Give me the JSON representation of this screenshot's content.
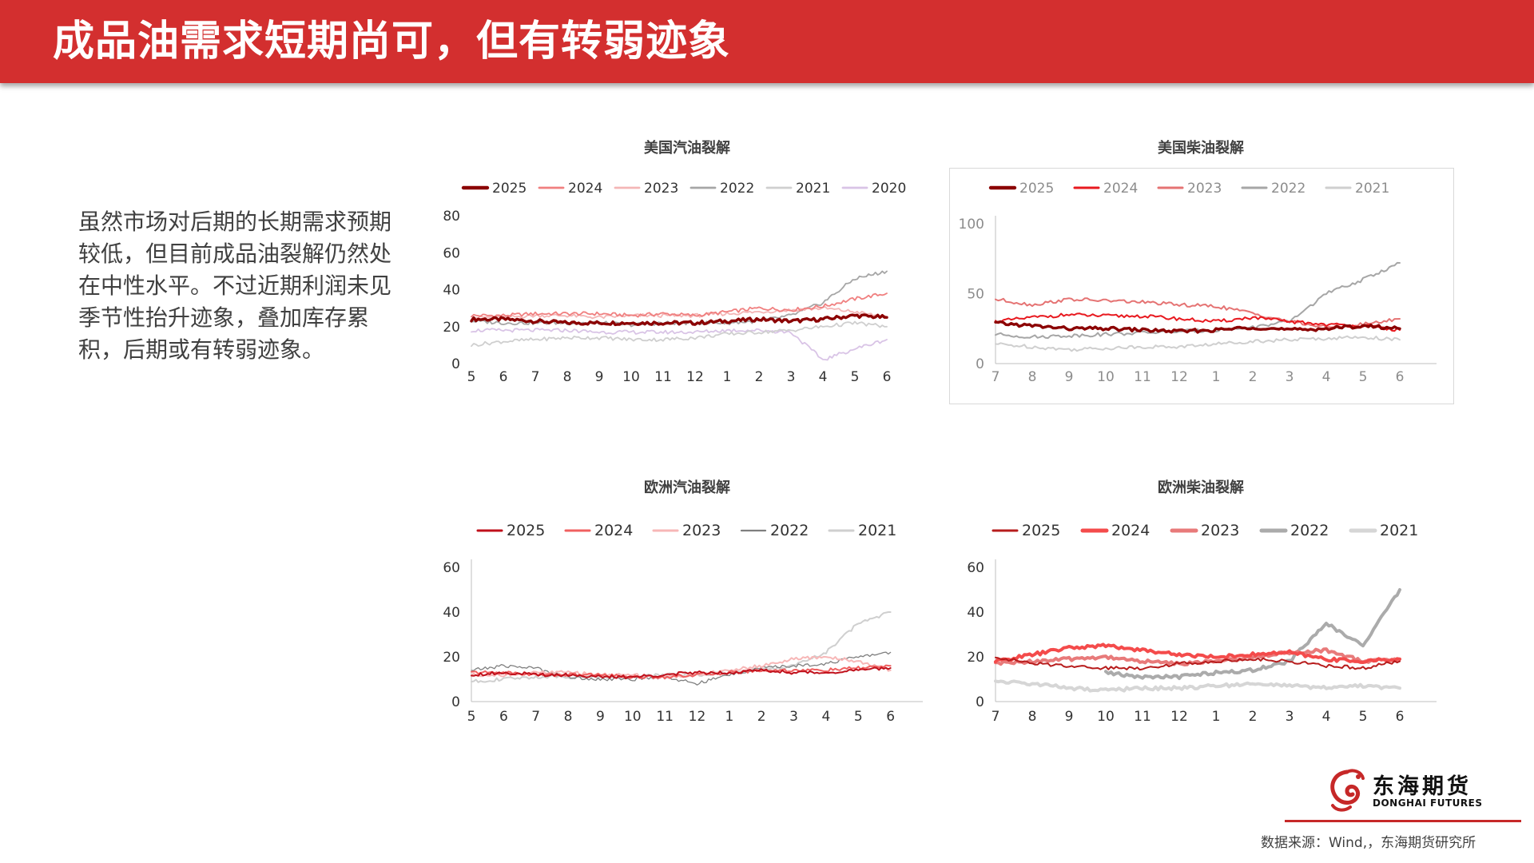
{
  "header": {
    "title": "成品油需求短期尚可，但有转弱迹象"
  },
  "body_text": "虽然市场对后期的长期需求预期较低，但目前成品油裂解仍然处在中性水平。不过近期利润未见季节性抬升迹象，叠加库存累积，后期或有转弱迹象。",
  "brand": {
    "name_cn": "东海期货",
    "name_en": "DONGHAI FUTURES",
    "logo_icon": "dragon-logo-icon",
    "accent": "#c62828"
  },
  "source_note": "数据来源：Wind,，东海期货研究所",
  "colors": {
    "header_bg": "#d32f2f"
  },
  "chart_data": [
    {
      "id": "us-gasoline",
      "type": "line",
      "title": "美国汽油裂解",
      "categories": [
        "5",
        "6",
        "7",
        "8",
        "9",
        "10",
        "11",
        "12",
        "1",
        "2",
        "3",
        "4",
        "5",
        "6"
      ],
      "ylim": [
        0,
        80
      ],
      "yticks": [
        "0",
        "20",
        "40",
        "60",
        "80"
      ],
      "legend_position": "top",
      "series": [
        {
          "name": "2025",
          "color": "#8b0000",
          "width": 3.4,
          "values": [
            24,
            24,
            23,
            22,
            22,
            22,
            22,
            22,
            23,
            24,
            23,
            24,
            26,
            25
          ]
        },
        {
          "name": "2024",
          "color": "#f08080",
          "width": 1.8,
          "values": [
            26,
            26,
            27,
            27,
            27,
            26,
            27,
            26,
            28,
            30,
            29,
            31,
            35,
            38
          ]
        },
        {
          "name": "2023",
          "color": "#f4b6b6",
          "width": 1.8,
          "values": [
            25,
            25,
            26,
            26,
            25,
            26,
            26,
            26,
            27,
            28,
            29,
            30,
            28,
            25
          ]
        },
        {
          "name": "2022",
          "color": "#a6a6a6",
          "width": 1.8,
          "values": [
            23,
            22,
            22,
            22,
            22,
            21,
            22,
            22,
            22,
            23,
            26,
            33,
            46,
            50
          ]
        },
        {
          "name": "2021",
          "color": "#cfcfcf",
          "width": 1.8,
          "values": [
            10,
            12,
            13,
            14,
            14,
            13,
            13,
            14,
            16,
            17,
            18,
            20,
            22,
            20
          ]
        },
        {
          "name": "2020",
          "color": "#d9c4e6",
          "width": 1.8,
          "values": [
            18,
            18,
            18,
            18,
            17,
            17,
            17,
            17,
            18,
            18,
            17,
            2,
            8,
            13
          ]
        }
      ]
    },
    {
      "id": "us-diesel",
      "type": "line",
      "title": "美国柴油裂解",
      "categories": [
        "7",
        "8",
        "9",
        "10",
        "11",
        "12",
        "1",
        "2",
        "3",
        "4",
        "5",
        "6"
      ],
      "ylim": [
        0,
        100
      ],
      "yticks": [
        "0",
        "50",
        "100"
      ],
      "legend_position": "top",
      "series": [
        {
          "name": "2025",
          "color": "#8b0000",
          "width": 3.4,
          "values": [
            29,
            27,
            25,
            25,
            24,
            23,
            24,
            26,
            24,
            25,
            27,
            25
          ]
        },
        {
          "name": "2024",
          "color": "#e8191f",
          "width": 2.0,
          "values": [
            30,
            33,
            35,
            34,
            34,
            32,
            30,
            33,
            30,
            28,
            27,
            24
          ]
        },
        {
          "name": "2023",
          "color": "#e57373",
          "width": 2.0,
          "values": [
            46,
            42,
            46,
            45,
            44,
            42,
            41,
            36,
            30,
            26,
            28,
            32
          ]
        },
        {
          "name": "2022",
          "color": "#a6a6a6",
          "width": 2.0,
          "values": [
            21,
            19,
            20,
            21,
            22,
            23,
            24,
            26,
            30,
            50,
            60,
            72
          ]
        },
        {
          "name": "2021",
          "color": "#cfcfcf",
          "width": 2.0,
          "values": [
            14,
            12,
            10,
            11,
            12,
            12,
            14,
            16,
            17,
            18,
            19,
            17
          ]
        }
      ]
    },
    {
      "id": "eu-gasoline",
      "type": "line",
      "title": "欧洲汽油裂解",
      "categories": [
        "5",
        "6",
        "7",
        "8",
        "9",
        "10",
        "11",
        "12",
        "1",
        "2",
        "3",
        "4",
        "5",
        "6"
      ],
      "ylim": [
        0,
        60
      ],
      "yticks": [
        "0",
        "20",
        "40",
        "60"
      ],
      "legend_position": "top",
      "series": [
        {
          "name": "2025",
          "color": "#c0101b",
          "width": 2.0,
          "values": [
            12,
            13,
            12,
            12,
            11,
            11,
            12,
            13,
            13,
            14,
            13,
            13,
            14,
            15
          ]
        },
        {
          "name": "2024",
          "color": "#f06060",
          "width": 2.0,
          "values": [
            13,
            13,
            12,
            12,
            12,
            11,
            11,
            12,
            13,
            14,
            14,
            14,
            15,
            16
          ]
        },
        {
          "name": "2023",
          "color": "#f7b7b7",
          "width": 2.0,
          "values": [
            12,
            12,
            13,
            13,
            12,
            12,
            11,
            12,
            14,
            16,
            19,
            20,
            18,
            14
          ]
        },
        {
          "name": "2022",
          "color": "#7f7f7f",
          "width": 1.3,
          "values": [
            14,
            16,
            15,
            11,
            10,
            10,
            11,
            8,
            12,
            15,
            16,
            17,
            20,
            22
          ]
        },
        {
          "name": "2021",
          "color": "#cfcfcf",
          "width": 2.0,
          "values": [
            9,
            10,
            11,
            11,
            11,
            11,
            12,
            12,
            13,
            14,
            16,
            22,
            35,
            40
          ]
        }
      ]
    },
    {
      "id": "eu-diesel",
      "type": "line",
      "title": "欧洲柴油裂解",
      "categories": [
        "7",
        "8",
        "9",
        "10",
        "11",
        "12",
        "1",
        "2",
        "3",
        "4",
        "5",
        "6"
      ],
      "ylim": [
        0,
        60
      ],
      "yticks": [
        "0",
        "20",
        "40",
        "60"
      ],
      "legend_position": "top",
      "series": [
        {
          "name": "2025",
          "color": "#b71c1c",
          "width": 2.0,
          "values": [
            20,
            17,
            16,
            15,
            15,
            17,
            18,
            19,
            18,
            16,
            15,
            18
          ]
        },
        {
          "name": "2024",
          "color": "#f44b4b",
          "width": 4.0,
          "values": [
            18,
            21,
            24,
            25,
            23,
            21,
            20,
            21,
            22,
            19,
            18,
            19
          ]
        },
        {
          "name": "2023",
          "color": "#e87a7a",
          "width": 4.0,
          "values": [
            17,
            18,
            19,
            20,
            18,
            17,
            18,
            20,
            22,
            23,
            18,
            19
          ]
        },
        {
          "name": "2022",
          "color": "#ababab",
          "width": 4.0,
          "values": [
            null,
            null,
            null,
            13,
            11,
            11,
            13,
            14,
            18,
            35,
            25,
            50
          ]
        },
        {
          "name": "2021",
          "color": "#d6d6d6",
          "width": 4.0,
          "values": [
            9,
            8,
            6,
            5,
            6,
            6,
            7,
            8,
            7,
            6,
            7,
            6
          ]
        }
      ]
    }
  ]
}
